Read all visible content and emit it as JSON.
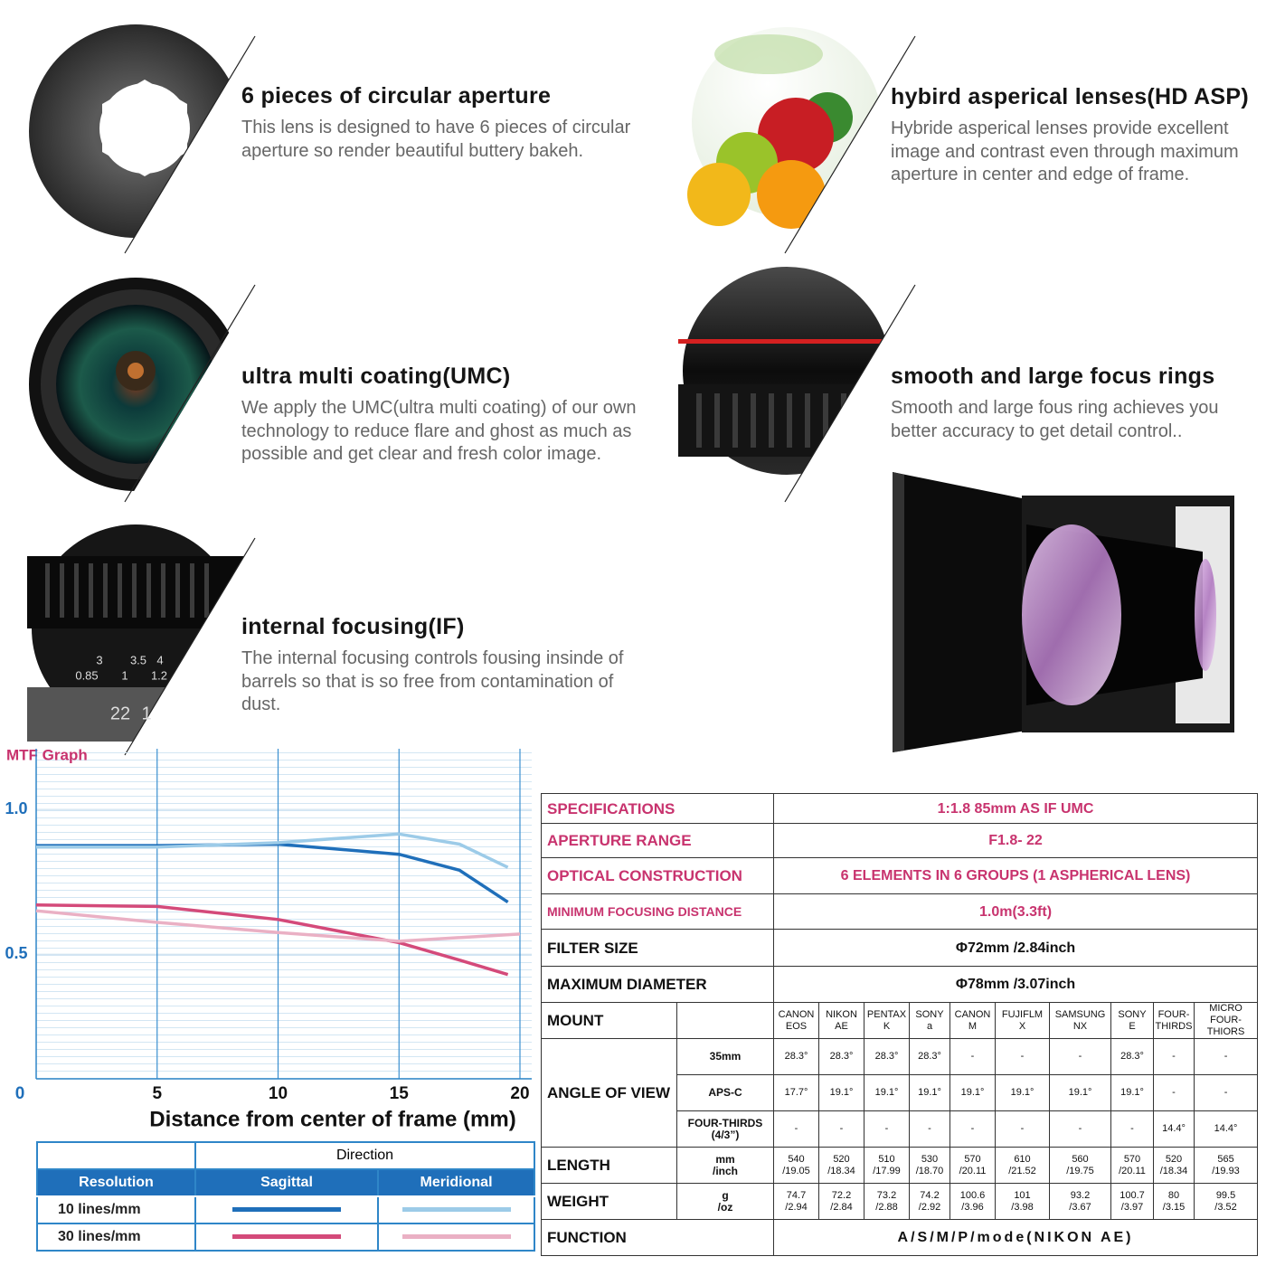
{
  "features": [
    {
      "title": "6 pieces of circular aperture",
      "text": "This lens is designed to have 6 pieces of circular aperture so render beautiful buttery bakeh."
    },
    {
      "title": "hybird asperical lenses(HD ASP)",
      "text": "Hybride asperical lenses provide excellent image and contrast even through maximum aperture in center and edge of frame."
    },
    {
      "title": "ultra multi coating(UMC)",
      "text": "We apply the UMC(ultra multi coating) of our own technology to reduce flare and ghost as much as possible and get clear and fresh color image."
    },
    {
      "title": "smooth and large focus rings",
      "text": "Smooth and large fous ring achieves you better accuracy to get detail control.."
    },
    {
      "title": "internal focusing(IF)",
      "text": "The internal focusing controls fousing insinde of barrels so that is so free from contamination of dust."
    }
  ],
  "lens_scale": [
    "3",
    "3.5",
    "4",
    "0.85",
    "1",
    "1.2",
    "22",
    "1"
  ],
  "chart_data": {
    "type": "line",
    "title": "MTF Graph",
    "x_label": "Distance from center of frame (mm)",
    "xlim": [
      0,
      20
    ],
    "ylim": [
      0.07,
      1.2
    ],
    "xticks": [
      0,
      5,
      10,
      15,
      20
    ],
    "yticks": [
      {
        "value": 0.5,
        "label": "0.5"
      },
      {
        "value": 1,
        "label": "1.0"
      }
    ],
    "series": [
      {
        "color": "#1f6fba",
        "x": [
          0,
          5,
          10,
          15,
          17.5,
          19.5
        ],
        "values": [
          0.875,
          0.875,
          0.88,
          0.845,
          0.79,
          0.68
        ]
      },
      {
        "color": "#9ccbe8",
        "x": [
          0,
          5,
          10,
          15,
          17.5,
          19.5
        ],
        "values": [
          0.87,
          0.87,
          0.885,
          0.915,
          0.88,
          0.8
        ]
      },
      {
        "color": "#d44a7a",
        "x": [
          0,
          5,
          10,
          15,
          17.5,
          19.5
        ],
        "values": [
          0.67,
          0.665,
          0.62,
          0.54,
          0.48,
          0.43
        ]
      },
      {
        "color": "#eab0c4",
        "x": [
          0,
          5,
          10,
          15,
          20
        ],
        "values": [
          0.65,
          0.61,
          0.575,
          0.545,
          0.57
        ]
      }
    ],
    "legend": {
      "title": "Direction",
      "row_header": "Resolution",
      "columns": [
        "Sagittal",
        "Meridional"
      ],
      "rows": [
        "10 lines/mm",
        "30 lines/mm"
      ]
    }
  },
  "specifications": {
    "rows": [
      {
        "label": "SPECIFICATIONS",
        "value": "1:1.8 85mm AS IF UMC"
      },
      {
        "label": "APERTURE RANGE",
        "value": "F1.8- 22"
      },
      {
        "label": "OPTICAL CONSTRUCTION",
        "value": "6 ELEMENTS IN 6 GROUPS (1 ASPHERICAL LENS)"
      },
      {
        "label": "MINIMUM FOCUSING DISTANCE",
        "value": "1.0m(3.3ft)"
      },
      {
        "label": "FILTER SIZE",
        "value": "Φ72mm /2.84inch"
      },
      {
        "label": "MAXIMUM DIAMETER",
        "value": "Φ78mm /3.07inch"
      }
    ],
    "mount": {
      "label": "MOUNT",
      "columns": [
        "CANON\nEOS",
        "NIKON\nAE",
        "PENTAX\nK",
        "SONY\na",
        "CANON\nM",
        "FUJIFLM\nX",
        "SAMSUNG\nNX",
        "SONY\nE",
        "FOUR-\nTHIRDS",
        "MICRO\nFOUR-\nTHIORS"
      ]
    },
    "angle_of_view": {
      "label": "ANGLE OF VIEW",
      "rows": [
        {
          "format": "35mm",
          "values": [
            "28.3°",
            "28.3°",
            "28.3°",
            "28.3°",
            "-",
            "-",
            "-",
            "28.3°",
            "-",
            "-"
          ]
        },
        {
          "format": "APS-C",
          "values": [
            "17.7°",
            "19.1°",
            "19.1°",
            "19.1°",
            "19.1°",
            "19.1°",
            "19.1°",
            "19.1°",
            "-",
            "-"
          ]
        },
        {
          "format": "FOUR-THIRDS\n(4/3”)",
          "values": [
            "-",
            "-",
            "-",
            "-",
            "-",
            "-",
            "-",
            "-",
            "14.4°",
            "14.4°"
          ]
        }
      ]
    },
    "length": {
      "label": "LENGTH",
      "unit": "mm\n/inch",
      "values": [
        "540\n/19.05",
        "520\n/18.34",
        "510\n/17.99",
        "530\n/18.70",
        "570\n/20.11",
        "610\n/21.52",
        "560\n/19.75",
        "570\n/20.11",
        "520\n/18.34",
        "565\n/19.93"
      ]
    },
    "weight": {
      "label": "WEIGHT",
      "unit": "g\n/oz",
      "values": [
        "74.7\n/2.94",
        "72.2\n/2.84",
        "73.2\n/2.88",
        "74.2\n/2.92",
        "100.6\n/3.96",
        "101\n/3.98",
        "93.2\n/3.67",
        "100.7\n/3.97",
        "80\n/3.15",
        "99.5\n/3.52"
      ]
    },
    "function": {
      "label": "FUNCTION",
      "value": "A/S/M/P/mode(NIKON AE)"
    }
  }
}
